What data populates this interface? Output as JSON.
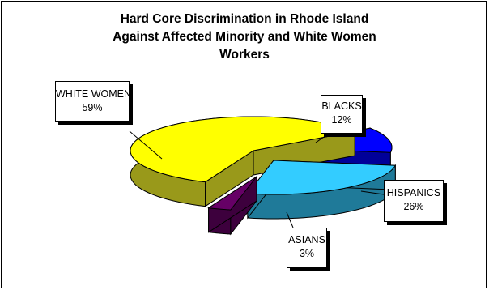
{
  "chart_data": {
    "type": "pie",
    "style": "3d-exploded",
    "title_lines": [
      "Hard Core Discrimination in Rhode Island",
      "Against Affected Minority and White Women",
      "Workers"
    ],
    "slices": [
      {
        "label": "WHITE WOMEN",
        "value": 59,
        "value_label": "59%",
        "color": "#ffff00",
        "side_color": "#99991a"
      },
      {
        "label": "BLACKS",
        "value": 12,
        "value_label": "12%",
        "color": "#0000ff",
        "side_color": "#000099"
      },
      {
        "label": "HISPANICS",
        "value": 26,
        "value_label": "26%",
        "color": "#33ccff",
        "side_color": "#1f7a99"
      },
      {
        "label": "ASIANS",
        "value": 3,
        "value_label": "3%",
        "color": "#660066",
        "side_color": "#3d003d"
      }
    ],
    "legend": "none"
  }
}
